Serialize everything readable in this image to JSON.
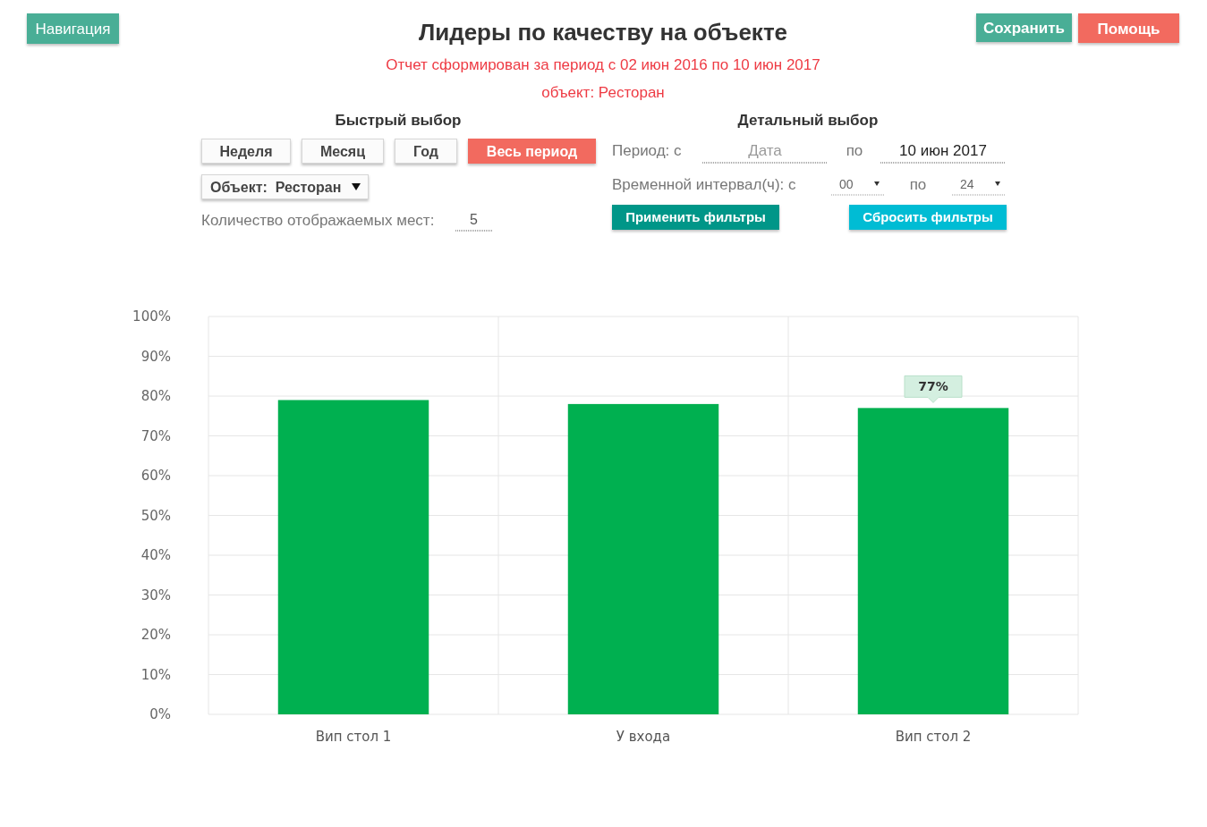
{
  "chart_data": {
    "type": "bar",
    "title": "Лидеры по качеству на объекте",
    "subtitle": "Отчет сформирован за период с 02 июн 2016 по 10 июн 2017",
    "categories": [
      "Вип стол 1",
      "У входа",
      "Вип стол 2"
    ],
    "values": [
      79,
      78,
      77
    ],
    "color": "#00b050",
    "value_labels": [
      null,
      null,
      "77%"
    ],
    "ylim": [
      0,
      100
    ],
    "yticks": [
      {
        "value": 0,
        "label": "0%"
      },
      {
        "value": 10,
        "label": "10%"
      },
      {
        "value": 20,
        "label": "20%"
      },
      {
        "value": 30,
        "label": "30%"
      },
      {
        "value": 40,
        "label": "40%"
      },
      {
        "value": 50,
        "label": "50%"
      },
      {
        "value": 60,
        "label": "60%"
      },
      {
        "value": 70,
        "label": "70%"
      },
      {
        "value": 80,
        "label": "80%"
      },
      {
        "value": 90,
        "label": "90%"
      },
      {
        "value": 100,
        "label": "100%"
      }
    ],
    "grid": true,
    "annotations": [
      "объект: Ресторан",
      "Навигация",
      "Сохранить",
      "Помощь",
      "Быстрый выбор",
      "Неделя",
      "Месяц",
      "Год",
      "Весь период",
      "Объект:  Ресторан",
      "Количество отображаемых мест:",
      "5",
      "Детальный выбор",
      "Период: с",
      "Дата",
      "по",
      "10 июн 2017",
      "Временной интервал(ч): с",
      "00",
      "по",
      "24",
      "Применить фильтры",
      "Сбросить фильтры"
    ]
  }
}
